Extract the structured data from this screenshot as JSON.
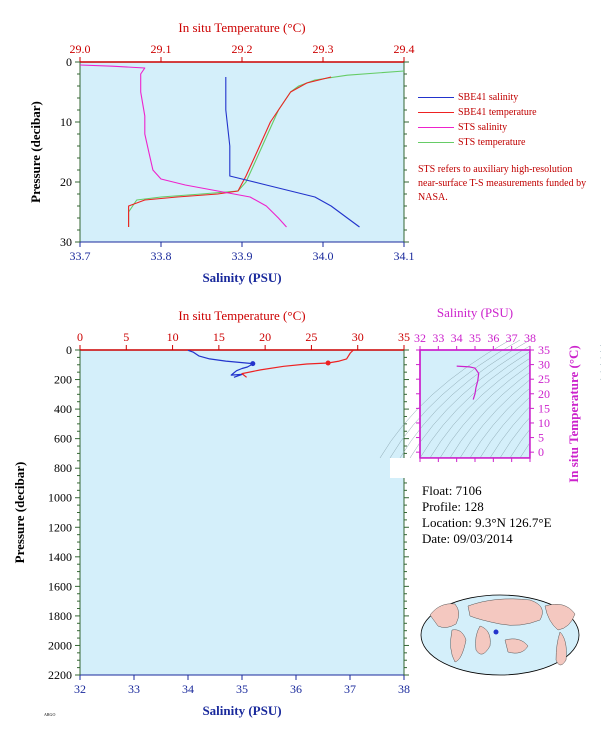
{
  "colors": {
    "bg": "#d4effa",
    "salinity": "#2233cc",
    "temperature": "#ee2222",
    "sts_salinity": "#ee22cc",
    "sts_temperature": "#66cc66",
    "axis_blue": "#1a2a9c",
    "axis_red": "#cc0000",
    "axis_green": "#336633",
    "magenta": "#cc22cc"
  },
  "top": {
    "title_top": "In situ Temperature (°C)",
    "xlabel": "Salinity (PSU)",
    "ylabel": "Pressure (decibar)",
    "temp_ticks": [
      "29.0",
      "29.1",
      "29.2",
      "29.3",
      "29.4"
    ],
    "sal_ticks": [
      "33.7",
      "33.8",
      "33.9",
      "34.0",
      "34.1"
    ],
    "pres_ticks": [
      "0",
      "10",
      "20",
      "30"
    ]
  },
  "legend": [
    {
      "label": "SBE41 salinity",
      "color": "#2233cc"
    },
    {
      "label": "SBE41 temperature",
      "color": "#ee2222"
    },
    {
      "label": "STS salinity",
      "color": "#ee22cc"
    },
    {
      "label": "STS temperature",
      "color": "#66cc66"
    }
  ],
  "note": "STS refers to auxiliary high-resolution near-surface T-S measurements funded by NASA.",
  "bottom": {
    "title_top": "In situ Temperature (°C)",
    "xlabel": "Salinity (PSU)",
    "ylabel": "Pressure (decibar)",
    "temp_ticks": [
      "0",
      "5",
      "10",
      "15",
      "20",
      "25",
      "30",
      "35"
    ],
    "sal_ticks": [
      "32",
      "33",
      "34",
      "35",
      "36",
      "37",
      "38"
    ],
    "pres_ticks": [
      "0",
      "200",
      "400",
      "600",
      "800",
      "1000",
      "1200",
      "1400",
      "1600",
      "1800",
      "2000",
      "2200"
    ]
  },
  "ts": {
    "title": "Salinity (PSU)",
    "ylabel": "In situ Temperature (°C)",
    "sal_ticks": [
      "32",
      "33",
      "34",
      "35",
      "36",
      "37",
      "38"
    ],
    "temp_ticks": [
      "35",
      "30",
      "25",
      "20",
      "15",
      "10",
      "5",
      "0"
    ]
  },
  "info": {
    "float": "Float:  7106",
    "profile": "Profile:  128",
    "location": "Location:  9.3°N  126.7°E",
    "date": "Date:  09/03/2014"
  },
  "stamp": "ARGO",
  "chart_data": [
    {
      "type": "line",
      "title": "",
      "xlabel": "Salinity (PSU)",
      "x2label": "In situ Temperature (°C)",
      "ylabel": "Pressure (decibar)",
      "xlim": [
        33.7,
        34.1
      ],
      "x2lim": [
        29.0,
        29.4
      ],
      "ylim": [
        30,
        0
      ],
      "series": [
        {
          "name": "SBE41 salinity",
          "axis": "salinity",
          "points": [
            [
              33.88,
              2.5
            ],
            [
              33.88,
              8
            ],
            [
              33.885,
              14
            ],
            [
              33.885,
              19
            ],
            [
              33.9,
              19.5
            ],
            [
              33.93,
              20.5
            ],
            [
              33.96,
              21.5
            ],
            [
              33.99,
              22.5
            ],
            [
              34.01,
              24
            ],
            [
              34.03,
              26
            ],
            [
              34.045,
              27.5
            ]
          ]
        },
        {
          "name": "SBE41 temperature",
          "axis": "temperature",
          "points": [
            [
              29.31,
              2.5
            ],
            [
              29.28,
              3.5
            ],
            [
              29.26,
              5
            ],
            [
              29.25,
              7
            ],
            [
              29.235,
              10
            ],
            [
              29.225,
              13
            ],
            [
              29.215,
              16
            ],
            [
              29.205,
              19
            ],
            [
              29.195,
              21.5
            ],
            [
              29.17,
              22
            ],
            [
              29.12,
              22.5
            ],
            [
              29.08,
              23
            ],
            [
              29.06,
              24
            ],
            [
              29.06,
              27.5
            ]
          ]
        },
        {
          "name": "STS salinity",
          "axis": "salinity",
          "points": [
            [
              33.7,
              0.5
            ],
            [
              33.74,
              0.7
            ],
            [
              33.78,
              1
            ],
            [
              33.775,
              2
            ],
            [
              33.775,
              5
            ],
            [
              33.78,
              9
            ],
            [
              33.78,
              12
            ],
            [
              33.785,
              15
            ],
            [
              33.79,
              18
            ],
            [
              33.8,
              19.5
            ],
            [
              33.83,
              20.5
            ],
            [
              33.87,
              21.5
            ],
            [
              33.91,
              22.5
            ],
            [
              33.93,
              24
            ],
            [
              33.945,
              26
            ],
            [
              33.955,
              27.5
            ]
          ]
        },
        {
          "name": "STS temperature",
          "axis": "temperature",
          "points": [
            [
              29.4,
              1.5
            ],
            [
              29.33,
              2.2
            ],
            [
              29.29,
              3
            ],
            [
              29.27,
              4
            ],
            [
              29.26,
              5
            ],
            [
              29.245,
              8
            ],
            [
              29.235,
              11
            ],
            [
              29.225,
              14
            ],
            [
              29.215,
              17
            ],
            [
              29.205,
              20
            ],
            [
              29.195,
              21.5
            ],
            [
              29.15,
              22
            ],
            [
              29.1,
              22.5
            ],
            [
              29.07,
              23
            ],
            [
              29.06,
              25
            ],
            [
              29.06,
              27.5
            ]
          ]
        }
      ]
    },
    {
      "type": "line",
      "title": "",
      "xlabel": "Salinity (PSU)",
      "x2label": "In situ Temperature (°C)",
      "ylabel": "Pressure (decibar)",
      "xlim": [
        32,
        38
      ],
      "x2lim": [
        0,
        35
      ],
      "ylim": [
        2200,
        0
      ],
      "series": [
        {
          "axis": "salinity",
          "points": [
            [
              34.0,
              2
            ],
            [
              34.1,
              15
            ],
            [
              34.2,
              40
            ],
            [
              34.4,
              60
            ],
            [
              34.7,
              75
            ],
            [
              35.0,
              85
            ],
            [
              35.2,
              92
            ],
            [
              35.15,
              105
            ],
            [
              35.1,
              115
            ],
            [
              35.0,
              125
            ],
            [
              34.9,
              140
            ],
            [
              34.85,
              155
            ],
            [
              34.8,
              170
            ],
            [
              35.0,
              165
            ],
            [
              34.85,
              185
            ]
          ]
        },
        {
          "axis": "temperature",
          "points": [
            [
              29.5,
              2
            ],
            [
              29.2,
              20
            ],
            [
              28.8,
              60
            ],
            [
              28.0,
              75
            ],
            [
              26.8,
              88
            ],
            [
              24.5,
              95
            ],
            [
              22.0,
              110
            ],
            [
              19.5,
              135
            ],
            [
              17.5,
              160
            ],
            [
              18.0,
              185
            ]
          ]
        }
      ]
    },
    {
      "type": "scatter",
      "title": "Salinity (PSU)",
      "xlabel": "Salinity (PSU)",
      "ylabel": "In situ Temperature (°C)",
      "xlim": [
        32,
        38
      ],
      "ylim": [
        -2,
        35
      ],
      "series": [
        {
          "points": [
            [
              34.0,
              29.5
            ],
            [
              34.7,
              29.2
            ],
            [
              35.0,
              28.8
            ],
            [
              35.2,
              27.0
            ],
            [
              35.15,
              24.5
            ],
            [
              35.05,
              22.0
            ],
            [
              35.0,
              20.0
            ],
            [
              34.9,
              18.0
            ]
          ]
        }
      ]
    }
  ]
}
